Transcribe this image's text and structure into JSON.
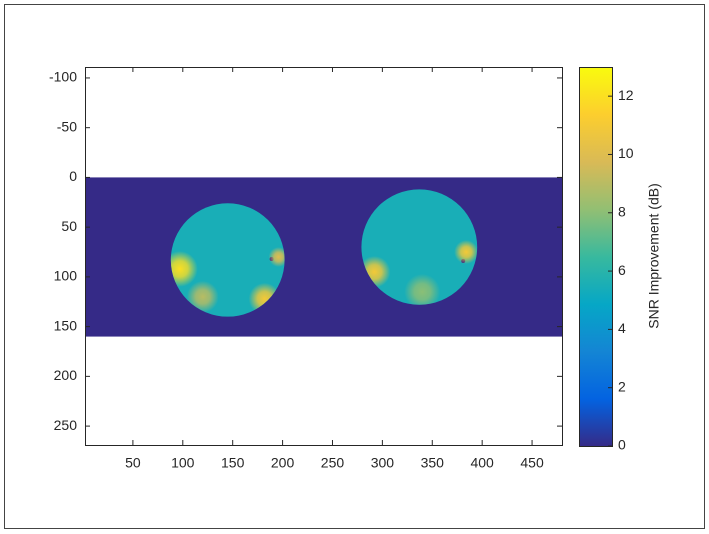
{
  "chart_data": {
    "type": "image",
    "xlim": [
      2,
      480
    ],
    "ylim": [
      -111,
      269
    ],
    "y_reversed": true,
    "xticks": [
      50,
      100,
      150,
      200,
      250,
      300,
      350,
      400,
      450
    ],
    "yticks": [
      -100,
      -50,
      0,
      50,
      100,
      150,
      200,
      250
    ],
    "clim": [
      0,
      13
    ],
    "cticks": [
      0,
      2,
      4,
      6,
      8,
      10,
      12
    ],
    "colorbar_label": "SNR Improvement (dB)",
    "colormap": [
      "#352a87",
      "#0363e1",
      "#1485d4",
      "#06a7c6",
      "#38b99e",
      "#92bf73",
      "#d9ba56",
      "#fcce2e",
      "#f9fb0e"
    ],
    "regions": [
      {
        "shape": "rect",
        "x": [
          0,
          480
        ],
        "y": [
          0,
          160
        ],
        "value": 0
      },
      {
        "shape": "disc",
        "cx": 145,
        "cy": 83,
        "r": 57,
        "value": 5.5
      },
      {
        "shape": "disc",
        "cx": 337,
        "cy": 70,
        "r": 58,
        "value": 5.5
      },
      {
        "shape": "spot",
        "cx": 97,
        "cy": 92,
        "r": 18,
        "value": 12
      },
      {
        "shape": "spot",
        "cx": 182,
        "cy": 122,
        "r": 16,
        "value": 11
      },
      {
        "shape": "spot",
        "cx": 196,
        "cy": 80,
        "r": 10,
        "value": 10
      },
      {
        "shape": "spot",
        "cx": 292,
        "cy": 95,
        "r": 16,
        "value": 11
      },
      {
        "shape": "spot",
        "cx": 384,
        "cy": 75,
        "r": 12,
        "value": 11
      },
      {
        "shape": "spot",
        "cx": 120,
        "cy": 120,
        "r": 16,
        "value": 9
      },
      {
        "shape": "spot",
        "cx": 340,
        "cy": 115,
        "r": 18,
        "value": 8
      },
      {
        "shape": "spot",
        "cx": 189,
        "cy": 82,
        "r": 2,
        "value": 0
      },
      {
        "shape": "spot",
        "cx": 381,
        "cy": 84,
        "r": 2,
        "value": 0
      }
    ]
  }
}
